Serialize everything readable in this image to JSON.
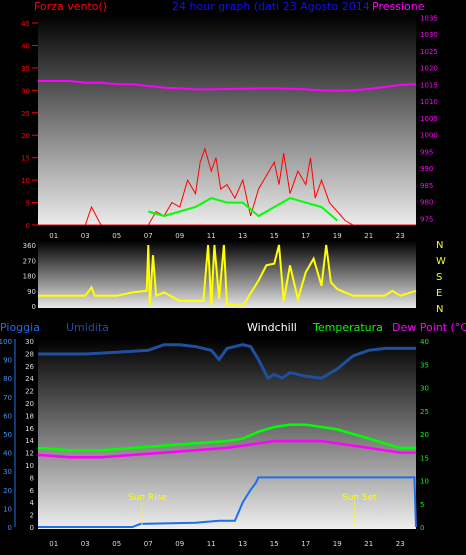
{
  "header": {
    "left_label": "Forza vento()",
    "title": "24 hour graph (dati 23 Agosto 2014",
    "right_label": "Pressione"
  },
  "colors": {
    "background": "#000000",
    "wind": "#ff0000",
    "wind_avg": "#00ff00",
    "pressure": "#ff00ff",
    "direction": "#ffff00",
    "humidity": "#1f4f9f",
    "temperature": "#00ff00",
    "dew_point": "#ff00ff",
    "rain": "#1e6fe8",
    "axis_text": "#dddddd",
    "left_axis_red": "#ff0000",
    "title_blue": "#1010ff"
  },
  "legend": {
    "pioggia": "Pioggia",
    "umidita": "Umidita",
    "windchill": "Windchill",
    "temperatura": "Temperatura",
    "dew_point": "Dew Point (°C)"
  },
  "annotations": {
    "sun_rise": "Sun Rise",
    "sun_set": "Sun Set"
  },
  "chart_data": [
    {
      "type": "line",
      "x_hours": [
        "01",
        "03",
        "05",
        "07",
        "09",
        "11",
        "13",
        "15",
        "17",
        "19",
        "21",
        "23"
      ],
      "left_ticks": [
        0,
        5,
        10,
        15,
        20,
        25,
        30,
        35,
        40,
        45
      ],
      "right_ticks": [
        975,
        980,
        985,
        990,
        995,
        1000,
        1005,
        1010,
        1015,
        1020,
        1025,
        1030,
        1035
      ],
      "series": [
        {
          "name": "Forza vento()",
          "axis": "left",
          "x": [
            0,
            3,
            3.4,
            4,
            7,
            7.5,
            8,
            8.5,
            9,
            9.5,
            10,
            10.3,
            10.6,
            11,
            11.3,
            11.6,
            12,
            12.5,
            13,
            13.5,
            14,
            14.5,
            15,
            15.3,
            15.6,
            16,
            16.5,
            17,
            17.3,
            17.6,
            18,
            18.5,
            19,
            19.5,
            20,
            24
          ],
          "values": [
            0,
            0,
            4,
            0,
            0,
            3,
            2,
            5,
            4,
            10,
            7,
            14,
            17,
            12,
            15,
            8,
            9,
            6,
            10,
            2,
            8,
            11,
            14,
            9,
            16,
            7,
            12,
            9,
            15,
            6,
            10,
            5,
            3,
            1,
            0,
            0
          ]
        },
        {
          "name": "Pressione",
          "axis": "right",
          "x": [
            0,
            1,
            2,
            3,
            4,
            5,
            6,
            7,
            8,
            9,
            10,
            11,
            12,
            13,
            14,
            15,
            16,
            17,
            18,
            19,
            20,
            21,
            22,
            23,
            24
          ],
          "values": [
            1016,
            1016,
            1016,
            1015.5,
            1015.5,
            1015,
            1015,
            1014.5,
            1014,
            1013.8,
            1013.5,
            1013.5,
            1013.6,
            1013.7,
            1013.8,
            1013.8,
            1013.7,
            1013.5,
            1013.2,
            1013.1,
            1013.2,
            1013.6,
            1014.2,
            1014.8,
            1015
          ]
        }
      ]
    },
    {
      "type": "line",
      "y_ticks": [
        0,
        90,
        180,
        270,
        360
      ],
      "direction_labels": [
        "N",
        "W",
        "S",
        "E",
        "N"
      ],
      "series": [
        {
          "name": "direction",
          "x": [
            0,
            1,
            2,
            3,
            3.4,
            3.6,
            5,
            6,
            6.9,
            7,
            7.1,
            7.3,
            7.5,
            8,
            9,
            9.5,
            10.5,
            10.8,
            11,
            11.2,
            11.5,
            11.8,
            12,
            13,
            14,
            14.5,
            15,
            15.3,
            15.6,
            16,
            16.5,
            17,
            17.5,
            18,
            18.3,
            18.6,
            19,
            20,
            21,
            22,
            22.5,
            23,
            24
          ],
          "values": [
            60,
            60,
            60,
            60,
            110,
            60,
            60,
            80,
            90,
            360,
            0,
            300,
            60,
            80,
            30,
            30,
            30,
            360,
            0,
            360,
            40,
            360,
            10,
            0,
            150,
            240,
            250,
            360,
            30,
            240,
            40,
            200,
            280,
            120,
            360,
            140,
            100,
            60,
            60,
            60,
            90,
            60,
            90
          ]
        }
      ]
    },
    {
      "type": "line",
      "x_hours": [
        "01",
        "03",
        "05",
        "07",
        "09",
        "11",
        "13",
        "15",
        "17",
        "19",
        "21",
        "23"
      ],
      "left_ticks": [
        0,
        10,
        20,
        30,
        40,
        50,
        60,
        70,
        80,
        90,
        100
      ],
      "mid_ticks": [
        0,
        2,
        4,
        6,
        8,
        10,
        12,
        14,
        16,
        18,
        20,
        22,
        24,
        26,
        28,
        30
      ],
      "right_ticks": [
        0,
        5,
        10,
        15,
        20,
        25,
        30,
        35,
        40
      ],
      "series": [
        {
          "name": "Umidita",
          "axis": "left",
          "x": [
            0,
            3,
            5,
            7,
            8,
            9,
            10,
            11,
            11.5,
            12,
            13,
            13.5,
            14,
            14.3,
            14.6,
            15,
            15.5,
            16,
            17,
            18,
            19,
            20,
            21,
            22,
            23,
            24
          ],
          "values": [
            93,
            93,
            94,
            95,
            98,
            98,
            97,
            95,
            90,
            96,
            98,
            97,
            90,
            85,
            80,
            82,
            80,
            83,
            81,
            80,
            85,
            92,
            95,
            96,
            96,
            96
          ]
        },
        {
          "name": "Temperatura",
          "axis": "right",
          "x": [
            0,
            2,
            4,
            6,
            8,
            10,
            12,
            13,
            14,
            15,
            16,
            17,
            18,
            19,
            20,
            21,
            22,
            23,
            24
          ],
          "values": [
            17,
            16.5,
            16.5,
            17,
            17.5,
            18,
            18.5,
            19,
            20.5,
            21.5,
            22,
            22,
            21.5,
            21,
            20,
            19,
            18,
            17,
            17
          ]
        },
        {
          "name": "Dew Point (°C)",
          "axis": "right",
          "x": [
            0,
            2,
            4,
            6,
            8,
            10,
            12,
            13,
            14,
            15,
            16,
            17,
            18,
            19,
            20,
            21,
            22,
            23,
            24
          ],
          "values": [
            15.5,
            15,
            15,
            15.5,
            16,
            16.5,
            17,
            17.5,
            18,
            18.5,
            18.5,
            18.5,
            18.5,
            18,
            17.5,
            17,
            16.5,
            16,
            16
          ]
        },
        {
          "name": "Pioggia",
          "axis": "mid",
          "x": [
            0,
            6,
            6.5,
            10,
            11.5,
            12.5,
            13,
            13.5,
            13.8,
            14,
            14.5,
            15,
            23.9,
            24
          ],
          "values": [
            0,
            0,
            0.5,
            0.7,
            1,
            1,
            4,
            6,
            7,
            8,
            8,
            8,
            8,
            0
          ]
        }
      ]
    }
  ]
}
